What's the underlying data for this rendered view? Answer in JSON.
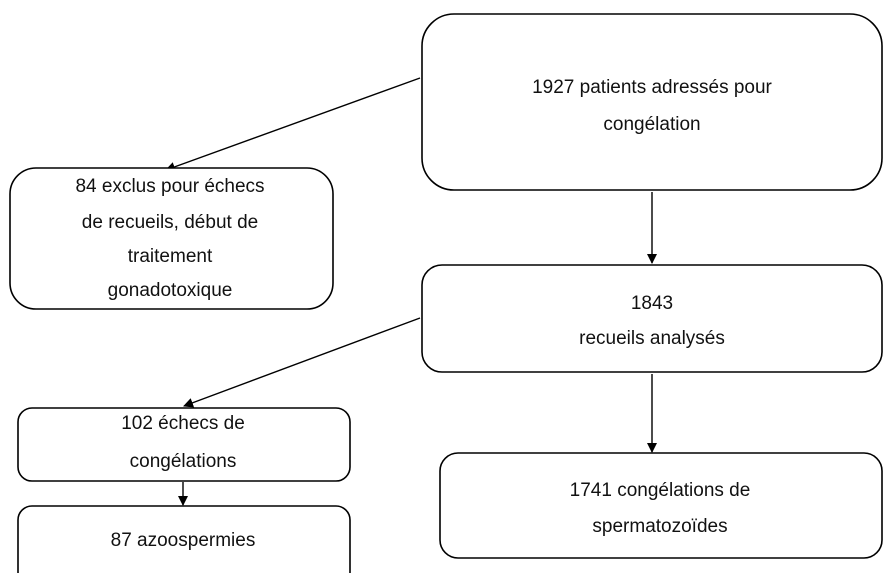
{
  "nodes": [
    {
      "lines": [
        "1927 patients adressés pour",
        "congélation"
      ]
    },
    {
      "lines": [
        "84 exclus pour échecs",
        "de recueils, début de",
        "traitement",
        "gonadotoxique"
      ]
    },
    {
      "lines": [
        "1843",
        "recueils analysés"
      ]
    },
    {
      "lines": [
        "102 échecs de",
        "congélations"
      ]
    },
    {
      "lines": [
        "87 azoospermies"
      ]
    },
    {
      "lines": [
        "1741 congélations de",
        "spermatozoïdes"
      ]
    }
  ]
}
